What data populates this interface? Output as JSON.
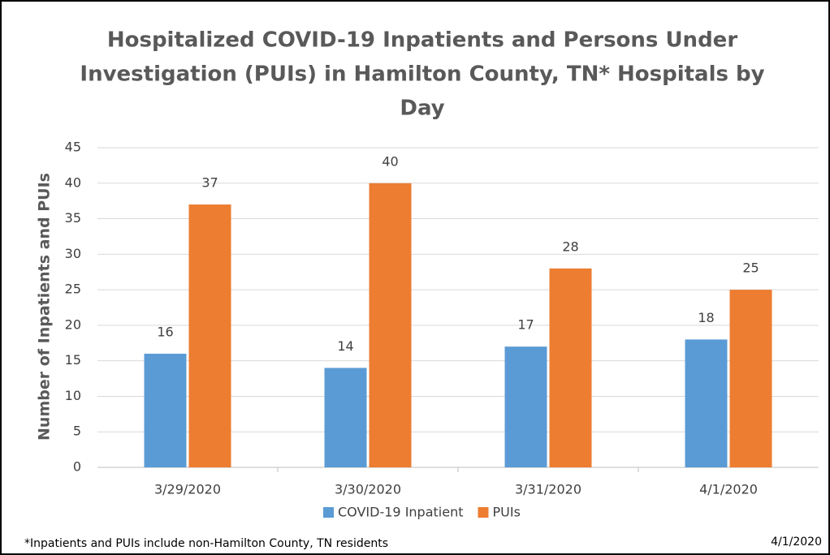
{
  "chart_data": {
    "type": "bar",
    "title": [
      "Hospitalized COVID-19 Inpatients and Persons Under",
      "Investigation (PUIs) in Hamilton County, TN* Hospitals by",
      "Day"
    ],
    "ylabel": "Number of Inpatients and PUIs",
    "categories": [
      "3/29/2020",
      "3/30/2020",
      "3/31/2020",
      "4/1/2020"
    ],
    "series": [
      {
        "name": "COVID-19 Inpatient",
        "color": "#5b9bd5",
        "values": [
          16,
          14,
          17,
          18
        ]
      },
      {
        "name": "PUIs",
        "color": "#ed7d31",
        "values": [
          37,
          40,
          28,
          25
        ]
      }
    ],
    "ylim": [
      0,
      45
    ],
    "yticks": [
      0,
      5,
      10,
      15,
      20,
      25,
      30,
      35,
      40,
      45
    ],
    "grid": true,
    "legend": "bottom",
    "footnote": "*Inpatients and PUIs include non-Hamilton County, TN residents",
    "date": "4/1/2020"
  }
}
